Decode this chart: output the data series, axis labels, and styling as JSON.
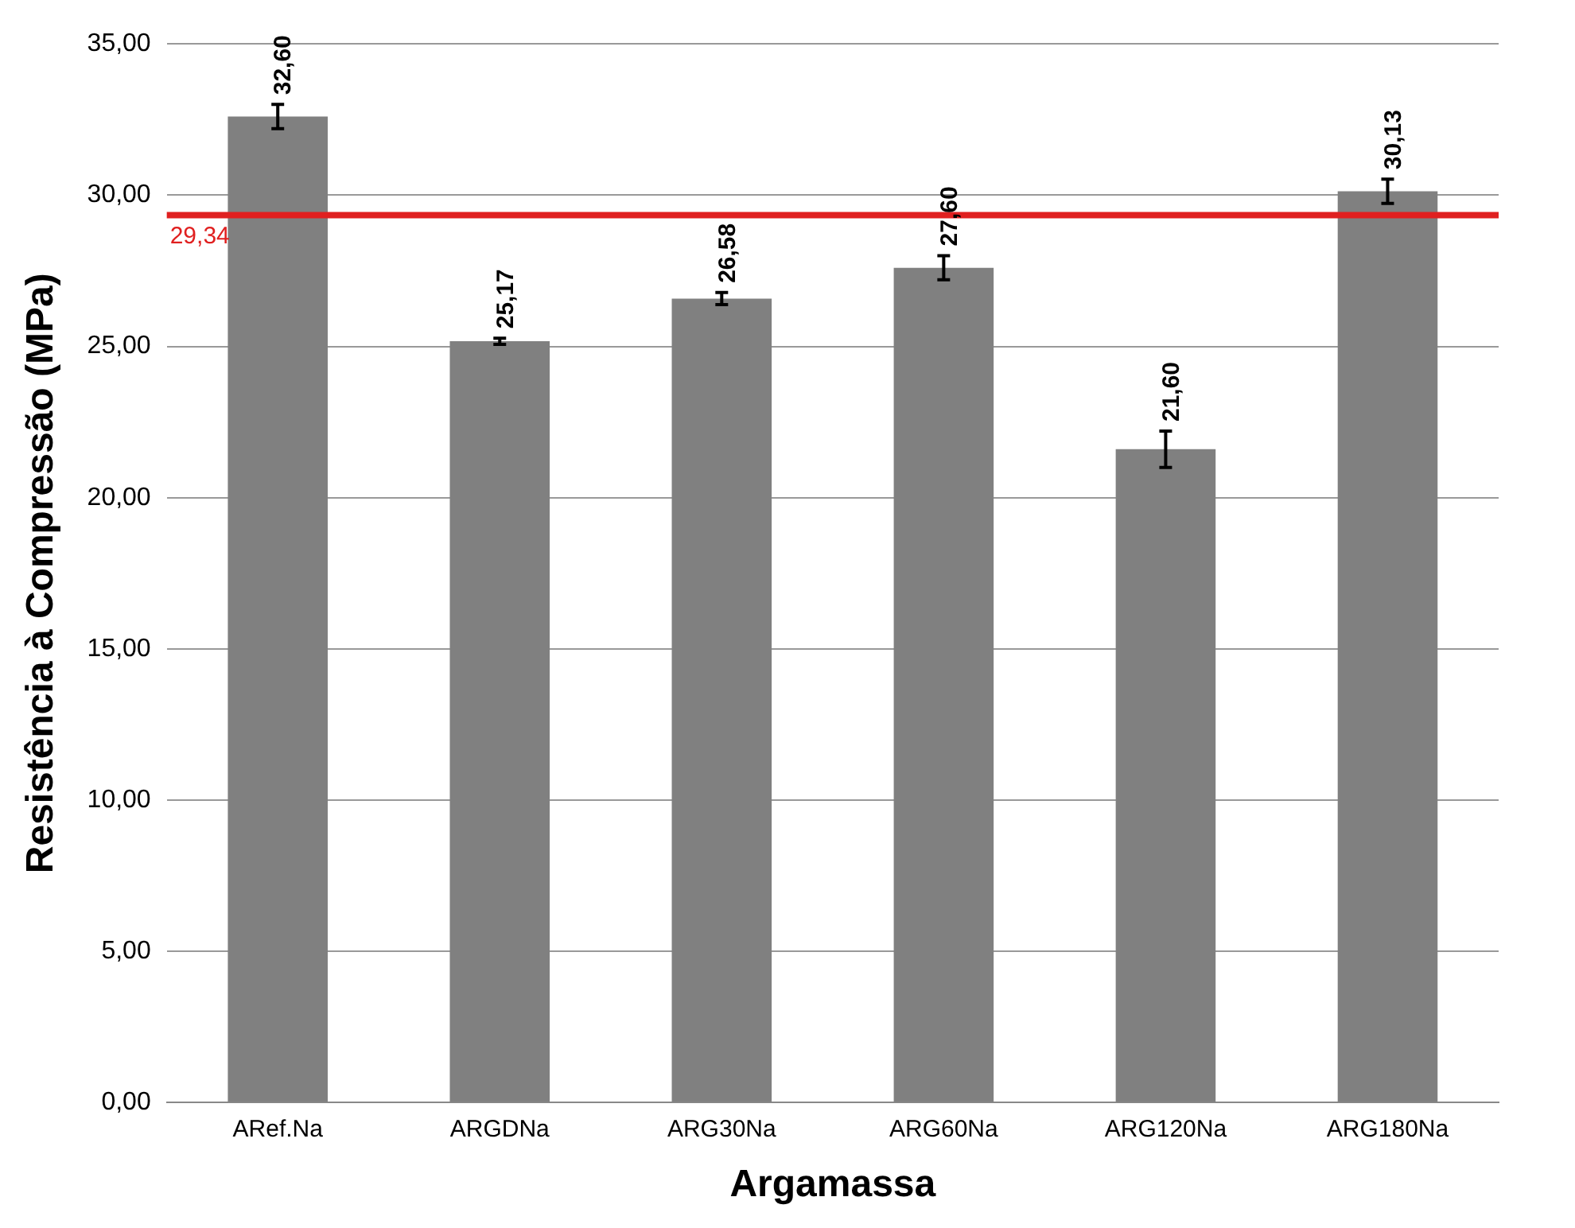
{
  "chart_data": {
    "type": "bar",
    "xlabel": "Argamassa",
    "ylabel": "Resistência à Compressão (MPa)",
    "categories": [
      "ARef.Na",
      "ARGDNa",
      "ARG30Na",
      "ARG60Na",
      "ARG120Na",
      "ARG180Na"
    ],
    "values": [
      32.6,
      25.17,
      26.58,
      27.6,
      21.6,
      30.13
    ],
    "errors": [
      0.4,
      0.1,
      0.2,
      0.4,
      0.6,
      0.4
    ],
    "value_labels": [
      "32,60",
      "25,17",
      "26,58",
      "27,60",
      "21,60",
      "30,13"
    ],
    "color": "#808080",
    "ylim": [
      0,
      35
    ],
    "yticks": [
      {
        "value": 0,
        "label": "0,00"
      },
      {
        "value": 5,
        "label": "5,00"
      },
      {
        "value": 10,
        "label": "10,00"
      },
      {
        "value": 15,
        "label": "15,00"
      },
      {
        "value": 20,
        "label": "20,00"
      },
      {
        "value": 25,
        "label": "25,00"
      },
      {
        "value": 30,
        "label": "30,00"
      },
      {
        "value": 35,
        "label": "35,00"
      }
    ],
    "ref_lines": [
      {
        "axis": "y",
        "value": 29.34,
        "label": "29,34",
        "color": "#e02020"
      }
    ],
    "grid": "y"
  }
}
